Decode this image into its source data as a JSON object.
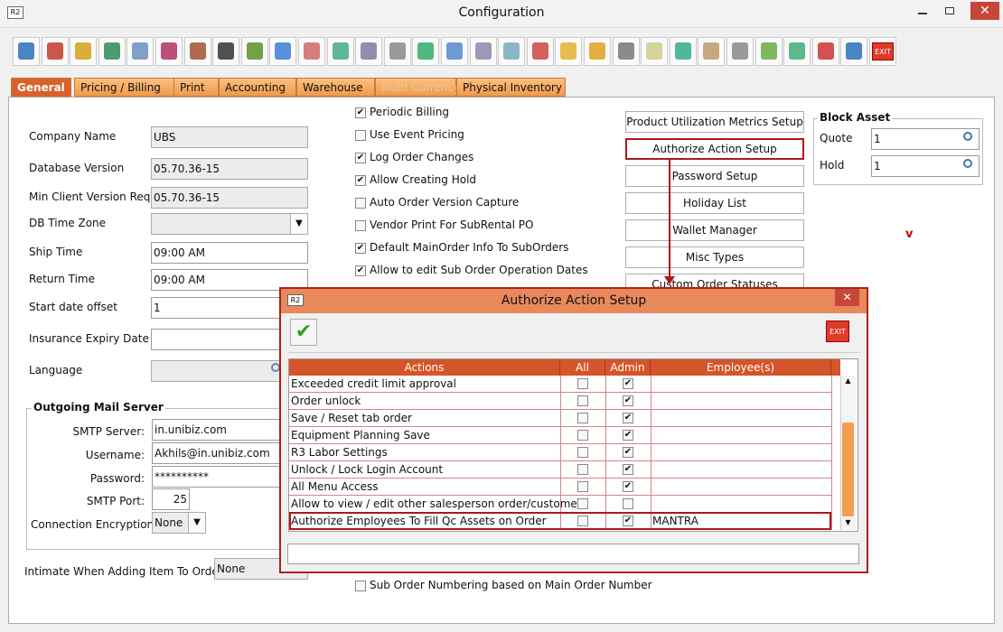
{
  "window": {
    "app_icon": "R2",
    "title": "Configuration"
  },
  "toolbar": {
    "exit_label": "EXIT"
  },
  "tabs": [
    "General",
    "Pricing / Billing",
    "Print",
    "Accounting",
    "Warehouse",
    "Multi Currency",
    "Physical Inventory"
  ],
  "fields": [
    {
      "label": "Company Name",
      "value": "UBS"
    },
    {
      "label": "Database Version",
      "value": "05.70.36-15"
    },
    {
      "label": "Min Client Version Req",
      "value": "05.70.36-15"
    },
    {
      "label": "DB Time Zone"
    },
    {
      "label": "Ship Time",
      "value": "09:00 AM"
    },
    {
      "label": "Return Time",
      "value": "09:00 AM"
    },
    {
      "label": "Start date offset",
      "value": "1"
    },
    {
      "label": "Insurance Expiry Date"
    },
    {
      "label": "Language"
    }
  ],
  "mail": {
    "title": "Outgoing Mail Server",
    "fields": [
      {
        "label": "SMTP Server:",
        "value": "in.unibiz.com"
      },
      {
        "label": "Username:",
        "value": "Akhils@in.unibiz.com"
      },
      {
        "label": "Password:",
        "value": "**********"
      },
      {
        "label": "SMTP Port:",
        "value": "25"
      },
      {
        "label": "Connection Encryption:",
        "value": "None"
      }
    ]
  },
  "intimate": {
    "label": "Intimate When Adding Item To Order",
    "value": "None"
  },
  "checkboxes": [
    {
      "label": "Periodic Billing",
      "checked": true
    },
    {
      "label": "Use Event Pricing",
      "checked": false
    },
    {
      "label": "Log Order Changes",
      "checked": true
    },
    {
      "label": "Allow Creating Hold",
      "checked": true
    },
    {
      "label": "Auto Order Version Capture",
      "checked": false
    },
    {
      "label": "Vendor Print For SubRental PO",
      "checked": false
    },
    {
      "label": "Default MainOrder Info To SubOrders",
      "checked": true
    },
    {
      "label": "Allow to edit Sub Order Operation Dates",
      "checked": true
    }
  ],
  "sub_order": {
    "label": "Sub Order Numbering based on Main Order Number",
    "checked": false
  },
  "buttons": [
    "Product Utilization Metrics Setup",
    "Authorize Action Setup",
    "Password Setup",
    "Holiday List",
    "Wallet Manager",
    "Misc Types",
    "Custom Order Statuses"
  ],
  "block_asset": {
    "title": "Block Asset",
    "fields": [
      {
        "label": "Quote",
        "value": "1"
      },
      {
        "label": "Hold",
        "value": "1"
      }
    ]
  },
  "dialog": {
    "app_icon": "R2",
    "title": "Authorize Action Setup",
    "exit_label": "EXIT",
    "columns": [
      "Actions",
      "All",
      "Admin",
      "Employee(s)"
    ],
    "rows": [
      {
        "action": "Exceeded credit limit approval",
        "all": false,
        "admin": true
      },
      {
        "action": "Order unlock",
        "all": false,
        "admin": true
      },
      {
        "action": "Save / Reset tab order",
        "all": false,
        "admin": true
      },
      {
        "action": "Equipment Planning Save",
        "all": false,
        "admin": true
      },
      {
        "action": "R3 Labor Settings",
        "all": false,
        "admin": true
      },
      {
        "action": "Unlock / Lock Login Account",
        "all": false,
        "admin": true
      },
      {
        "action": "All Menu Access",
        "all": false,
        "admin": true
      },
      {
        "action": "Allow to view / edit other salesperson order/customer",
        "all": false,
        "admin": false
      },
      {
        "action": "Authorize Employees To Fill Qc Assets on Order",
        "all": false,
        "admin": true,
        "employees": "MANTRA"
      }
    ]
  }
}
